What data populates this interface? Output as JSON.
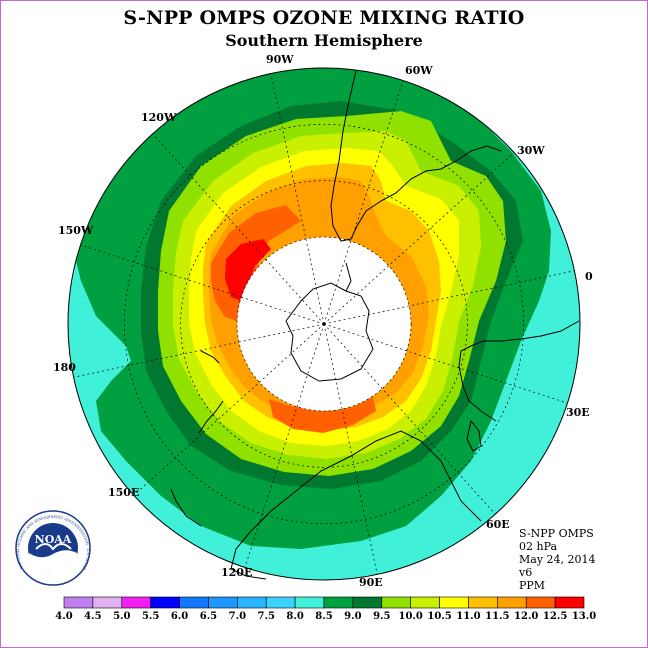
{
  "title": "S-NPP OMPS OZONE MIXING RATIO",
  "subtitle": "Southern Hemisphere",
  "logo_text": "NOAA",
  "logo_ring_text": "NATIONAL OCEANIC AND ATMOSPHERIC ADMINISTRATION · U.S. DEPARTMENT OF COMMERCE",
  "info": {
    "instrument": "S-NPP OMPS",
    "level": "02 hPa",
    "date": "May 24, 2014",
    "version": "v6",
    "units": "PPM"
  },
  "longitude_labels": [
    "90W",
    "60W",
    "30W",
    "0",
    "30E",
    "60E",
    "90E",
    "120E",
    "150E",
    "180",
    "150W",
    "120W"
  ],
  "colorbar": {
    "ticks": [
      "4.0",
      "4.5",
      "5.0",
      "5.5",
      "6.0",
      "6.5",
      "7.0",
      "7.5",
      "8.0",
      "8.5",
      "9.0",
      "9.5",
      "10.0",
      "10.5",
      "11.0",
      "11.5",
      "12.0",
      "12.5",
      "13.0"
    ],
    "colors": [
      "#c080f0",
      "#e0b0f0",
      "#f020f0",
      "#0000ff",
      "#1478ff",
      "#1e96ff",
      "#28b4ff",
      "#3cd2ff",
      "#40f0d8",
      "#00a040",
      "#007830",
      "#90e000",
      "#c8f000",
      "#ffff00",
      "#ffc000",
      "#ffa000",
      "#ff6000",
      "#ff0000",
      "#8b5a2b"
    ]
  },
  "colors": {
    "teal": "#40f0d8",
    "green": "#00a040",
    "dark_green": "#007830",
    "lime": "#90e000",
    "yellow_green": "#c8f000",
    "yellow": "#ffff00",
    "orange_light": "#ffc000",
    "orange": "#ffa000",
    "red_orange": "#ff6000",
    "red": "#ff0000",
    "no_data": "#ffffff",
    "frame_border": "#c86ac8"
  }
}
